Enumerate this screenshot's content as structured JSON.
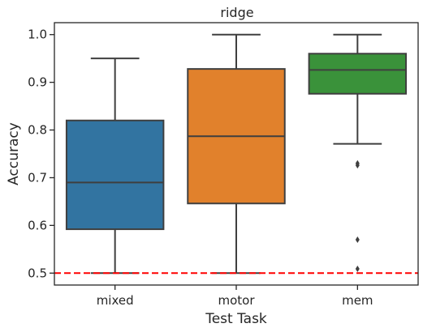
{
  "chart_data": {
    "type": "box",
    "title": "ridge",
    "xlabel": "Test Task",
    "ylabel": "Accuracy",
    "ylim": [
      0.475,
      1.025
    ],
    "yticks": [
      "0.5",
      "0.6",
      "0.7",
      "0.8",
      "0.9",
      "1.0"
    ],
    "categories": [
      "mixed",
      "motor",
      "mem"
    ],
    "boxes": [
      {
        "category": "mixed",
        "color": "#3274a1",
        "whisker_low": 0.5,
        "q1": 0.592,
        "median": 0.69,
        "q3": 0.82,
        "whisker_high": 0.95,
        "outliers": []
      },
      {
        "category": "motor",
        "color": "#e1812c",
        "whisker_low": 0.5,
        "q1": 0.646,
        "median": 0.787,
        "q3": 0.928,
        "whisker_high": 1.0,
        "outliers": []
      },
      {
        "category": "mem",
        "color": "#3a923a",
        "whisker_low": 0.771,
        "q1": 0.876,
        "median": 0.926,
        "q3": 0.96,
        "whisker_high": 1.0,
        "outliers": [
          0.73,
          0.726,
          0.57,
          0.509
        ]
      }
    ],
    "reference_line": {
      "y": 0.5,
      "color": "#ff0000",
      "style": "dashed"
    },
    "grid": false,
    "legend": "none"
  }
}
